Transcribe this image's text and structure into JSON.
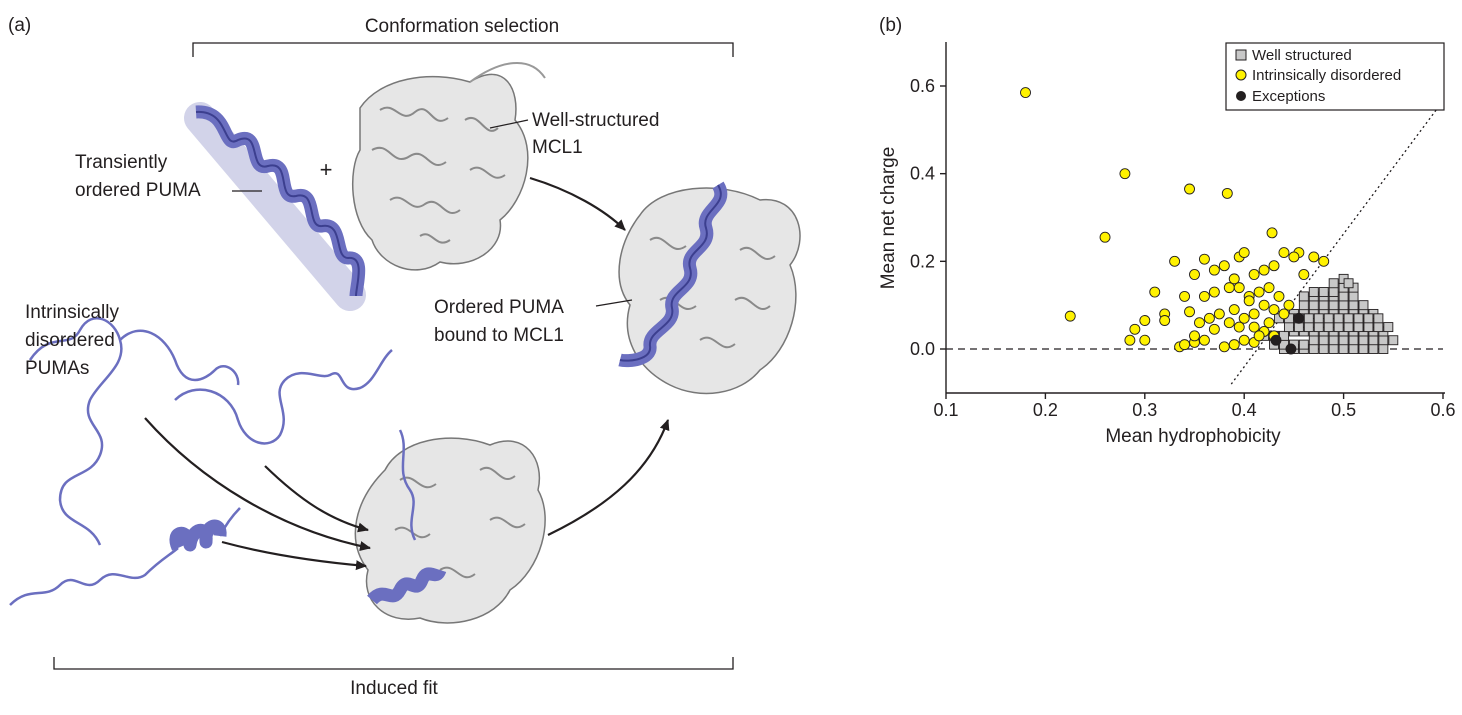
{
  "panel_a": {
    "label": "(a)",
    "conformation_selection": "Conformation selection",
    "induced_fit": "Induced fit",
    "plus": "+",
    "transient_line1": "Transiently",
    "transient_line2": "ordered PUMA",
    "mcl1_line1": "Well-structured",
    "mcl1_line2": "MCL1",
    "ordered_line1": "Ordered PUMA",
    "ordered_line2": "bound to MCL1",
    "disordered_line1": "Intrinsically",
    "disordered_line2": "disordered",
    "disordered_line3": "PUMAs",
    "colors": {
      "helix": "#6b6fc0",
      "protein": "#e6e6e6",
      "outline": "#555555"
    }
  },
  "panel_b": {
    "label": "(b)",
    "legend": [
      "Well structured",
      "Intrinsically disordered",
      "Exceptions"
    ]
  },
  "chart_data": {
    "type": "scatter",
    "xlabel": "Mean hydrophobicity",
    "ylabel": "Mean net charge",
    "xlim": [
      0.1,
      0.6
    ],
    "ylim": [
      -0.09,
      0.7
    ],
    "xticks": [
      "0.1",
      "0.2",
      "0.3",
      "0.4",
      "0.5",
      "0.6"
    ],
    "yticks": [
      "0.0",
      "0.2",
      "0.4",
      "0.6"
    ],
    "reference_lines": [
      {
        "style": "dashed",
        "from": [
          0.1,
          0.0
        ],
        "to": [
          0.6,
          0.0
        ]
      },
      {
        "style": "dotted",
        "from": [
          0.387,
          -0.08
        ],
        "to": [
          0.6,
          0.566
        ]
      }
    ],
    "legend_position": "top-right",
    "series": [
      {
        "name": "Well structured",
        "marker": "square",
        "color": "#c8c8c8",
        "x": [
          0.44,
          0.45,
          0.46,
          0.47,
          0.48,
          0.49,
          0.5,
          0.51,
          0.52,
          0.53,
          0.54,
          0.43,
          0.44,
          0.45,
          0.46,
          0.47,
          0.48,
          0.49,
          0.5,
          0.51,
          0.52,
          0.53,
          0.54,
          0.55,
          0.42,
          0.43,
          0.44,
          0.45,
          0.46,
          0.47,
          0.48,
          0.49,
          0.5,
          0.51,
          0.52,
          0.53,
          0.54,
          0.45,
          0.46,
          0.47,
          0.48,
          0.49,
          0.5,
          0.51,
          0.52,
          0.53,
          0.45,
          0.46,
          0.47,
          0.48,
          0.49,
          0.5,
          0.51,
          0.52,
          0.53,
          0.46,
          0.47,
          0.48,
          0.49,
          0.5,
          0.51,
          0.52,
          0.46,
          0.47,
          0.48,
          0.49,
          0.5,
          0.51,
          0.47,
          0.48,
          0.49,
          0.5,
          0.51,
          0.49,
          0.5,
          0.505,
          0.445,
          0.455,
          0.465,
          0.475,
          0.485,
          0.495,
          0.505,
          0.515,
          0.525,
          0.535,
          0.545,
          0.435,
          0.445,
          0.455,
          0.465,
          0.475,
          0.485,
          0.495,
          0.505,
          0.515,
          0.525,
          0.535
        ],
        "y": [
          0.0,
          0.0,
          0.0,
          0.0,
          0.0,
          0.0,
          0.0,
          0.0,
          0.0,
          0.0,
          0.0,
          0.01,
          0.01,
          0.01,
          0.01,
          0.02,
          0.02,
          0.02,
          0.02,
          0.02,
          0.02,
          0.02,
          0.02,
          0.02,
          0.03,
          0.03,
          0.03,
          0.04,
          0.04,
          0.04,
          0.04,
          0.04,
          0.04,
          0.04,
          0.04,
          0.04,
          0.04,
          0.06,
          0.06,
          0.06,
          0.06,
          0.06,
          0.06,
          0.06,
          0.06,
          0.06,
          0.08,
          0.08,
          0.08,
          0.08,
          0.08,
          0.08,
          0.08,
          0.08,
          0.08,
          0.1,
          0.1,
          0.1,
          0.1,
          0.1,
          0.1,
          0.1,
          0.12,
          0.12,
          0.12,
          0.12,
          0.12,
          0.12,
          0.13,
          0.13,
          0.13,
          0.14,
          0.14,
          0.15,
          0.16,
          0.15,
          0.05,
          0.05,
          0.05,
          0.05,
          0.05,
          0.05,
          0.05,
          0.05,
          0.05,
          0.05,
          0.05,
          0.07,
          0.07,
          0.07,
          0.07,
          0.07,
          0.07,
          0.07,
          0.07,
          0.07,
          0.07,
          0.07
        ]
      },
      {
        "name": "Intrinsically disordered",
        "marker": "circle",
        "color": "#fff200",
        "x": [
          0.18,
          0.28,
          0.26,
          0.225,
          0.345,
          0.383,
          0.36,
          0.395,
          0.4,
          0.428,
          0.455,
          0.48,
          0.33,
          0.35,
          0.37,
          0.38,
          0.39,
          0.41,
          0.42,
          0.43,
          0.44,
          0.45,
          0.46,
          0.47,
          0.31,
          0.32,
          0.34,
          0.36,
          0.37,
          0.385,
          0.395,
          0.405,
          0.415,
          0.425,
          0.435,
          0.445,
          0.29,
          0.3,
          0.32,
          0.345,
          0.355,
          0.365,
          0.375,
          0.39,
          0.4,
          0.41,
          0.42,
          0.43,
          0.44,
          0.285,
          0.3,
          0.335,
          0.34,
          0.35,
          0.36,
          0.38,
          0.39,
          0.4,
          0.41,
          0.42,
          0.43,
          0.35,
          0.37,
          0.385,
          0.395,
          0.41,
          0.425,
          0.415,
          0.405
        ],
        "y": [
          0.585,
          0.4,
          0.255,
          0.075,
          0.365,
          0.355,
          0.205,
          0.21,
          0.22,
          0.265,
          0.22,
          0.2,
          0.2,
          0.17,
          0.18,
          0.19,
          0.16,
          0.17,
          0.18,
          0.19,
          0.22,
          0.21,
          0.17,
          0.21,
          0.13,
          0.08,
          0.12,
          0.12,
          0.13,
          0.14,
          0.14,
          0.12,
          0.13,
          0.14,
          0.12,
          0.1,
          0.045,
          0.02,
          0.065,
          0.085,
          0.06,
          0.07,
          0.08,
          0.09,
          0.07,
          0.08,
          0.1,
          0.09,
          0.08,
          0.02,
          0.065,
          0.005,
          0.01,
          0.015,
          0.02,
          0.005,
          0.01,
          0.02,
          0.015,
          0.04,
          0.03,
          0.03,
          0.045,
          0.06,
          0.05,
          0.05,
          0.06,
          0.03,
          0.11
        ]
      },
      {
        "name": "Exceptions",
        "marker": "circle",
        "color": "#231f20",
        "x": [
          0.432,
          0.447,
          0.455
        ],
        "y": [
          0.02,
          0.0,
          0.07
        ]
      }
    ]
  }
}
